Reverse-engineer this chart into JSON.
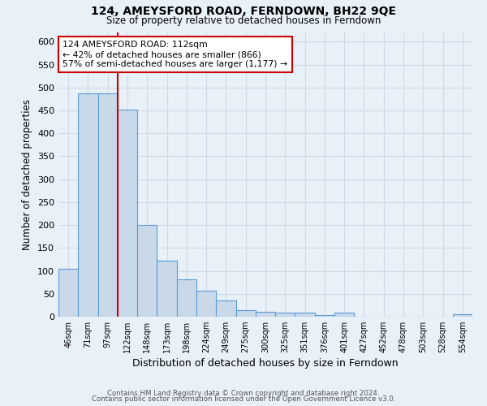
{
  "title": "124, AMEYSFORD ROAD, FERNDOWN, BH22 9QE",
  "subtitle": "Size of property relative to detached houses in Ferndown",
  "xlabel": "Distribution of detached houses by size in Ferndown",
  "ylabel": "Number of detached properties",
  "footer_lines": [
    "Contains HM Land Registry data © Crown copyright and database right 2024.",
    "Contains public sector information licensed under the Open Government Licence v3.0."
  ],
  "bar_labels": [
    "46sqm",
    "71sqm",
    "97sqm",
    "122sqm",
    "148sqm",
    "173sqm",
    "198sqm",
    "224sqm",
    "249sqm",
    "275sqm",
    "300sqm",
    "325sqm",
    "351sqm",
    "376sqm",
    "401sqm",
    "427sqm",
    "452sqm",
    "478sqm",
    "503sqm",
    "528sqm",
    "554sqm"
  ],
  "bar_heights": [
    105,
    487,
    487,
    451,
    200,
    122,
    82,
    57,
    35,
    15,
    10,
    8,
    8,
    3,
    8,
    0,
    0,
    0,
    0,
    0,
    5
  ],
  "bar_color": "#c9d9ea",
  "bar_edge_color": "#5b9bd5",
  "ylim": [
    0,
    620
  ],
  "yticks": [
    0,
    50,
    100,
    150,
    200,
    250,
    300,
    350,
    400,
    450,
    500,
    550,
    600
  ],
  "vline_x": 2.5,
  "vline_color": "#cc0000",
  "annotation_text": "124 AMEYSFORD ROAD: 112sqm\n← 42% of detached houses are smaller (866)\n57% of semi-detached houses are larger (1,177) →",
  "annotation_box_color": "#ffffff",
  "annotation_box_edge_color": "#cc0000",
  "grid_color": "#d0dae8",
  "bg_color": "#e8f0f8"
}
